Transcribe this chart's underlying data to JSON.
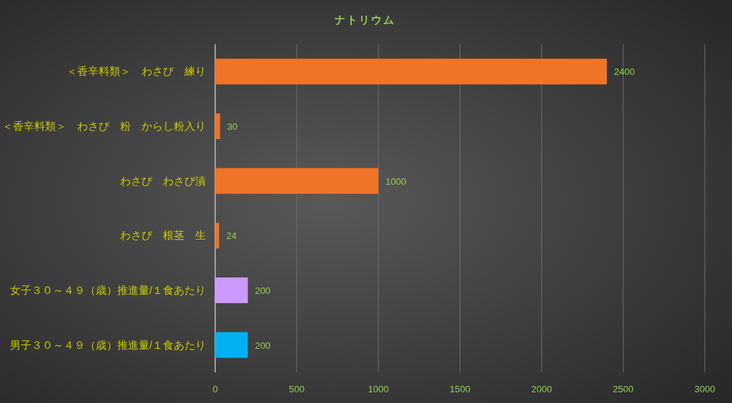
{
  "chart_data": {
    "type": "bar",
    "orientation": "horizontal",
    "title": "ナトリウム",
    "categories": [
      "＜香辛料類＞　わさび　練り",
      "＜香辛料類＞　わさび　粉　からし粉入り",
      "わさび　わさび漬",
      "わさび　根茎　生",
      "女子３０～４９（歳）推進量/１食あたり",
      "男子３０～４９（歳）推進量/１食あたり"
    ],
    "values": [
      2400,
      30,
      1000,
      24,
      200,
      200
    ],
    "colors": [
      "#f07427",
      "#f07427",
      "#f07427",
      "#f07427",
      "#cc99ff",
      "#00b0f0"
    ],
    "xlim": [
      0,
      3000
    ],
    "xticks": [
      0,
      500,
      1000,
      1500,
      2000,
      2500,
      3000
    ],
    "grid": "x",
    "data_labels": true
  }
}
